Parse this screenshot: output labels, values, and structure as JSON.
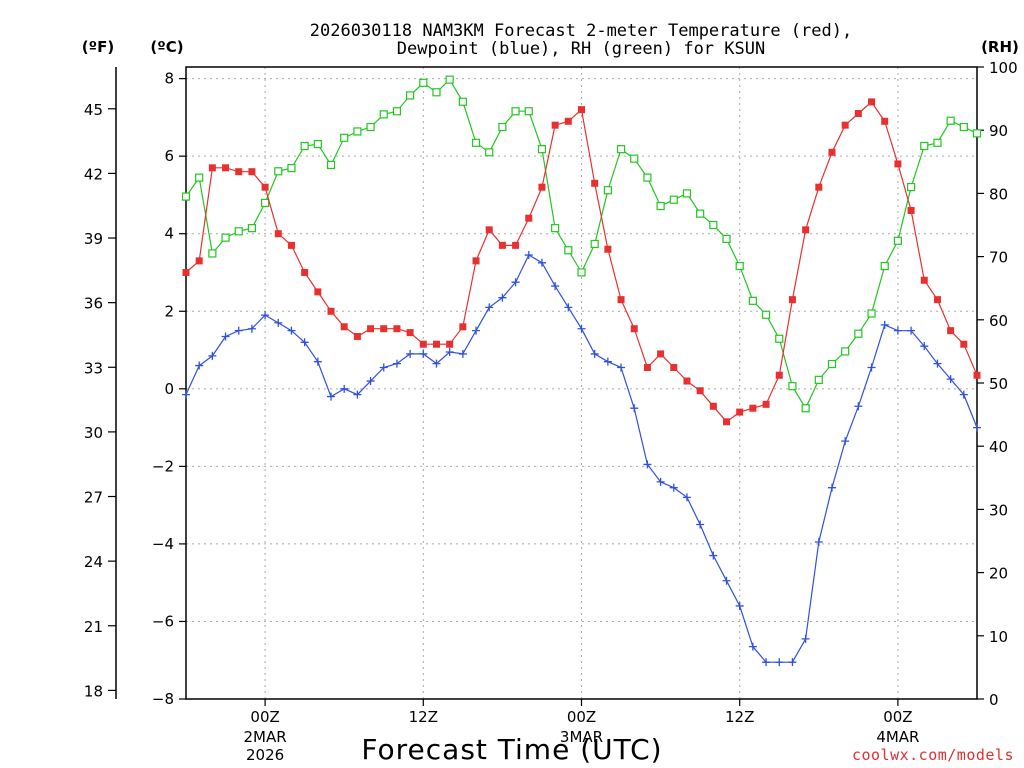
{
  "chart_data": {
    "type": "line",
    "title_line1": "2026030118 NAM3KM Forecast 2-meter Temperature (red),",
    "title_line2": "Dewpoint (blue), RH (green) for KSUN",
    "xlabel": "Forecast Time (UTC)",
    "credit": "coolwx.com/models",
    "units": {
      "fahrenheit": "(ºF)",
      "celsius": "(ºC)",
      "rh": "(RH)"
    },
    "celsius_axis": {
      "range": [
        -8,
        8.3
      ],
      "ticks": [
        8,
        6,
        4,
        2,
        0,
        -2,
        -4,
        -6,
        -8
      ],
      "labels": [
        "8",
        "6",
        "4",
        "2",
        "0",
        "−2",
        "−4",
        "−6",
        "−8"
      ]
    },
    "fahrenheit_axis": {
      "ticks": [
        45,
        42,
        39,
        36,
        33,
        30,
        27,
        24,
        21,
        18
      ]
    },
    "rh_axis": {
      "range": [
        0,
        100
      ],
      "ticks": [
        100,
        90,
        80,
        70,
        60,
        50,
        40,
        30,
        20,
        10,
        0
      ]
    },
    "x_axis": {
      "hours_range": [
        -3,
        27
      ],
      "ticks": [
        {
          "hour": 0,
          "label": "00Z",
          "sub": [
            "2MAR",
            "2026"
          ]
        },
        {
          "hour": 6,
          "label": "12Z",
          "sub": []
        },
        {
          "hour": 12,
          "label": "00Z",
          "sub": [
            "3MAR"
          ]
        },
        {
          "hour": 18,
          "label": "12Z",
          "sub": []
        },
        {
          "hour": 24,
          "label": "00Z",
          "sub": [
            "4MAR"
          ]
        }
      ]
    },
    "series": [
      {
        "name": "Temperature",
        "color": "#e83030",
        "marker": "filled-square",
        "unit": "C",
        "values": [
          3.0,
          3.3,
          5.7,
          5.7,
          5.6,
          5.6,
          5.2,
          4.0,
          3.7,
          3.0,
          2.5,
          2.0,
          1.6,
          1.35,
          1.55,
          1.55,
          1.55,
          1.45,
          1.15,
          1.15,
          1.15,
          1.6,
          3.3,
          4.1,
          3.7,
          3.7,
          4.4,
          5.2,
          6.8,
          6.9,
          7.2,
          5.3,
          3.6,
          2.3,
          1.55,
          0.55,
          0.9,
          0.55,
          0.2,
          -0.05,
          -0.45,
          -0.85,
          -0.6,
          -0.5,
          -0.4,
          0.35,
          2.3,
          4.1,
          5.2,
          6.1,
          6.8,
          7.1,
          7.4,
          6.9,
          5.8,
          4.6,
          2.8,
          2.3,
          1.5,
          1.15,
          0.35
        ]
      },
      {
        "name": "Dewpoint",
        "color": "#3050e0",
        "marker": "plus",
        "unit": "C",
        "values": [
          -0.15,
          0.6,
          0.85,
          1.35,
          1.5,
          1.55,
          1.9,
          1.7,
          1.5,
          1.2,
          0.7,
          -0.2,
          0.0,
          -0.15,
          0.2,
          0.55,
          0.65,
          0.9,
          0.9,
          0.65,
          0.95,
          0.9,
          1.5,
          2.1,
          2.35,
          2.75,
          3.45,
          3.25,
          2.65,
          2.1,
          1.55,
          0.9,
          0.7,
          0.55,
          -0.5,
          -1.95,
          -2.4,
          -2.55,
          -2.8,
          -3.5,
          -4.3,
          -4.95,
          -5.6,
          -6.65,
          -7.05,
          -7.05,
          -7.05,
          -6.45,
          -3.95,
          -2.55,
          -1.35,
          -0.45,
          0.55,
          1.65,
          1.5,
          1.5,
          1.1,
          0.65,
          0.25,
          -0.15,
          -1.0
        ]
      },
      {
        "name": "RH",
        "color": "#20c820",
        "marker": "open-square",
        "unit": "%",
        "values": [
          79.5,
          82.5,
          70.5,
          73.0,
          74.0,
          74.5,
          78.5,
          83.5,
          84.0,
          87.5,
          87.8,
          84.5,
          88.8,
          89.8,
          90.5,
          92.5,
          93.0,
          95.5,
          97.5,
          96.0,
          98.0,
          94.5,
          88.0,
          86.5,
          90.5,
          93.0,
          93.0,
          87.0,
          74.5,
          71.0,
          67.5,
          72.0,
          80.5,
          87.0,
          85.5,
          82.5,
          78.0,
          79.0,
          80.0,
          76.8,
          75.0,
          72.8,
          68.5,
          63.0,
          60.8,
          57.0,
          49.5,
          46.0,
          50.5,
          53.0,
          55.0,
          57.8,
          61.0,
          68.5,
          72.5,
          81.0,
          87.5,
          88.0,
          91.5,
          90.5,
          89.5
        ]
      }
    ]
  }
}
